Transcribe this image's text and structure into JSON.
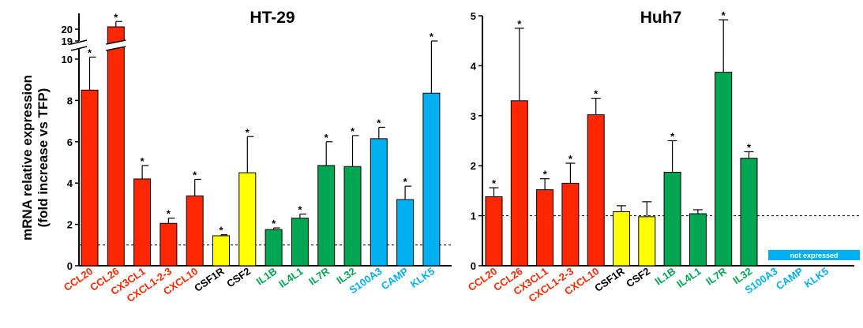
{
  "figure": {
    "y_axis_title_line1": "mRNA relative expression",
    "y_axis_title_line2": "(fold increase vs TFP)"
  },
  "chart_data": [
    {
      "type": "bar",
      "title": "HT-29",
      "categories": [
        "CCL20",
        "CCL26",
        "CX3CL1",
        "CXCL1-2-3",
        "CXCL10",
        "CSF1R",
        "CSF2",
        "IL1B",
        "IL4L1",
        "IL7R",
        "IL32",
        "S100A3",
        "CAMP",
        "KLK5"
      ],
      "values": [
        8.5,
        20.2,
        4.2,
        2.05,
        3.38,
        1.45,
        4.5,
        1.75,
        2.3,
        4.85,
        4.8,
        6.15,
        3.2,
        8.35
      ],
      "errors": [
        1.6,
        0.45,
        0.65,
        0.25,
        0.8,
        0.05,
        1.75,
        0.08,
        0.2,
        1.15,
        1.5,
        0.55,
        0.65,
        3.35
      ],
      "significant": [
        true,
        true,
        true,
        true,
        true,
        true,
        true,
        true,
        true,
        true,
        true,
        true,
        true,
        true
      ],
      "colors": [
        "#ff2600",
        "#ff2600",
        "#ff2600",
        "#ff2600",
        "#ff2600",
        "#ffff00",
        "#ffff00",
        "#00a651",
        "#00a651",
        "#00a651",
        "#00a651",
        "#00b0f0",
        "#00b0f0",
        "#00b0f0"
      ],
      "label_colors": [
        "#ff2600",
        "#ff2600",
        "#ff2600",
        "#ff2600",
        "#ff2600",
        "#000000",
        "#000000",
        "#00a651",
        "#00a651",
        "#00a651",
        "#00a651",
        "#00b0f0",
        "#00b0f0",
        "#00b0f0"
      ],
      "ylim": [
        0,
        20
      ],
      "axis_break": [
        10.5,
        19
      ],
      "yticks": [
        0,
        2,
        4,
        6,
        8,
        10,
        19,
        20
      ],
      "reference_line": 1
    },
    {
      "type": "bar",
      "title": "Huh7",
      "categories": [
        "CCL20",
        "CCL26",
        "CX3CL1",
        "CXCL1-2-3",
        "CXCL10",
        "CSF1R",
        "CSF2",
        "IL1B",
        "IL4L1",
        "IL7R",
        "IL32",
        "S100A3",
        "CAMP",
        "KLK5"
      ],
      "values": [
        1.38,
        3.3,
        1.52,
        1.65,
        3.02,
        1.08,
        0.98,
        1.87,
        1.04,
        3.87,
        2.15,
        null,
        null,
        null
      ],
      "errors": [
        0.18,
        1.45,
        0.22,
        0.4,
        0.33,
        0.12,
        0.3,
        0.63,
        0.08,
        1.05,
        0.13,
        null,
        null,
        null
      ],
      "significant": [
        true,
        true,
        true,
        true,
        true,
        false,
        false,
        true,
        false,
        true,
        true,
        false,
        false,
        false
      ],
      "colors": [
        "#ff2600",
        "#ff2600",
        "#ff2600",
        "#ff2600",
        "#ff2600",
        "#ffff00",
        "#ffff00",
        "#00a651",
        "#00a651",
        "#00a651",
        "#00a651",
        "#00b0f0",
        "#00b0f0",
        "#00b0f0"
      ],
      "label_colors": [
        "#ff2600",
        "#ff2600",
        "#ff2600",
        "#ff2600",
        "#ff2600",
        "#000000",
        "#000000",
        "#00a651",
        "#00a651",
        "#00a651",
        "#00a651",
        "#00b0f0",
        "#00b0f0",
        "#00b0f0"
      ],
      "ylim": [
        0,
        5
      ],
      "yticks": [
        0,
        1,
        2,
        3,
        4,
        5
      ],
      "reference_line": 1,
      "annotation": "not expressed",
      "annotation_color": "#00b0f0"
    }
  ],
  "significance_marker": "*"
}
